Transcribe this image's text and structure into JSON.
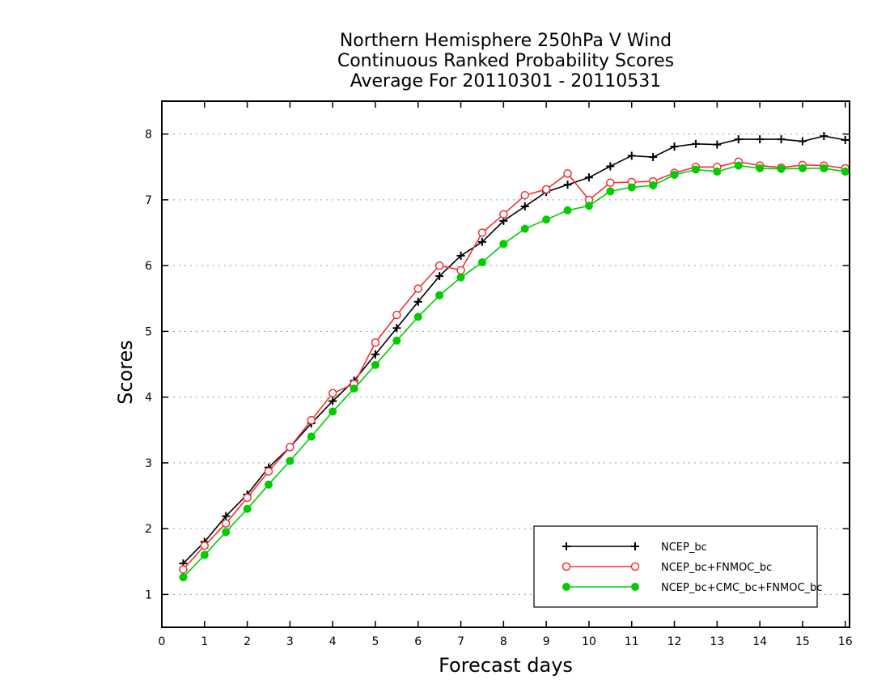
{
  "chart_data": {
    "type": "line",
    "title_lines": [
      "Northern Hemisphere 250hPa V Wind",
      "Continuous Ranked Probability Scores",
      "Average For 20110301 - 20110531"
    ],
    "xlabel": "Forecast days",
    "ylabel": "Scores",
    "xlim": [
      0,
      16.1
    ],
    "ylim": [
      0.5,
      8.5
    ],
    "xticks": [
      0,
      1,
      2,
      3,
      4,
      5,
      6,
      7,
      8,
      9,
      10,
      11,
      12,
      13,
      14,
      15,
      16
    ],
    "yticks": [
      1,
      2,
      3,
      4,
      5,
      6,
      7,
      8
    ],
    "grid": "horizontal-dotted",
    "legend_position": "bottom-right",
    "x": [
      0.5,
      1,
      1.5,
      2,
      2.5,
      3,
      3.5,
      4,
      4.5,
      5,
      5.5,
      6,
      6.5,
      7,
      7.5,
      8,
      8.5,
      9,
      9.5,
      10,
      10.5,
      11,
      11.5,
      12,
      12.5,
      13,
      13.5,
      14,
      14.5,
      15,
      15.5,
      16
    ],
    "series": [
      {
        "name": "NCEP_bc",
        "color": "#000000",
        "marker": "plus",
        "values": [
          1.47,
          1.8,
          2.19,
          2.52,
          2.93,
          3.24,
          3.6,
          3.94,
          4.25,
          4.65,
          5.05,
          5.45,
          5.84,
          6.15,
          6.36,
          6.68,
          6.9,
          7.12,
          7.23,
          7.34,
          7.51,
          7.67,
          7.65,
          7.81,
          7.85,
          7.84,
          7.92,
          7.92,
          7.92,
          7.89,
          7.97,
          7.91
        ]
      },
      {
        "name": "NCEP_bc+FNMOC_bc",
        "color": "#ee3333",
        "marker": "open-circle",
        "values": [
          1.38,
          1.74,
          2.08,
          2.47,
          2.87,
          3.24,
          3.65,
          4.06,
          4.2,
          4.83,
          5.25,
          5.65,
          6.0,
          5.93,
          6.5,
          6.78,
          7.07,
          7.16,
          7.4,
          7.0,
          7.26,
          7.27,
          7.28,
          7.41,
          7.5,
          7.5,
          7.58,
          7.52,
          7.49,
          7.53,
          7.52,
          7.48
        ]
      },
      {
        "name": "NCEP_bc+CMC_bc+FNMOC_bc",
        "color": "#00cc00",
        "marker": "filled-circle",
        "values": [
          1.26,
          1.6,
          1.95,
          2.3,
          2.67,
          3.03,
          3.4,
          3.78,
          4.13,
          4.49,
          4.86,
          5.22,
          5.55,
          5.82,
          6.05,
          6.33,
          6.56,
          6.7,
          6.84,
          6.91,
          7.13,
          7.19,
          7.22,
          7.38,
          7.46,
          7.43,
          7.52,
          7.48,
          7.47,
          7.48,
          7.48,
          7.43
        ]
      }
    ]
  }
}
